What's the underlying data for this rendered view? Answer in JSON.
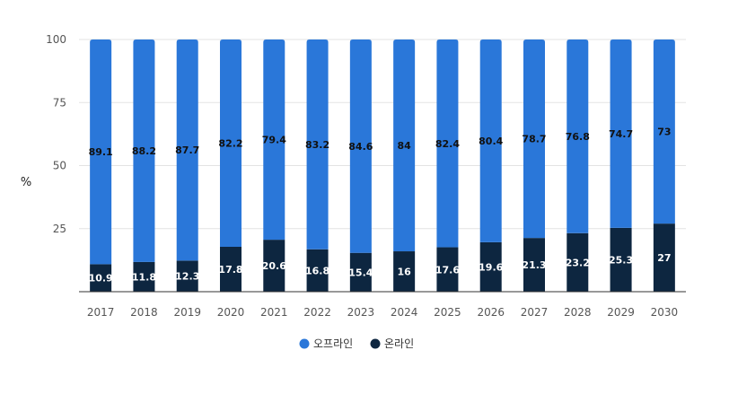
{
  "chart_data": {
    "type": "bar",
    "stacked": true,
    "categories": [
      "2017",
      "2018",
      "2019",
      "2020",
      "2021",
      "2022",
      "2023",
      "2024",
      "2025",
      "2026",
      "2027",
      "2028",
      "2029",
      "2030"
    ],
    "series": [
      {
        "name": "온라인",
        "color": "#0d2640",
        "label_color": "#ffffff",
        "values": [
          10.9,
          11.8,
          12.3,
          17.8,
          20.6,
          16.8,
          15.4,
          16,
          17.6,
          19.6,
          21.3,
          23.2,
          25.3,
          27
        ]
      },
      {
        "name": "오프라인",
        "color": "#2a77d9",
        "label_color": "#111111",
        "values": [
          89.1,
          88.2,
          87.7,
          82.2,
          79.4,
          83.2,
          84.6,
          84,
          82.4,
          80.4,
          78.7,
          76.8,
          74.7,
          73
        ]
      }
    ],
    "title": "",
    "xlabel": "",
    "ylabel": "%",
    "ylim": [
      0,
      100
    ],
    "yticks": [
      25,
      50,
      75,
      100
    ],
    "grid": true,
    "legend": {
      "placement": "bottom-center",
      "order": [
        "오프라인",
        "온라인"
      ]
    }
  }
}
